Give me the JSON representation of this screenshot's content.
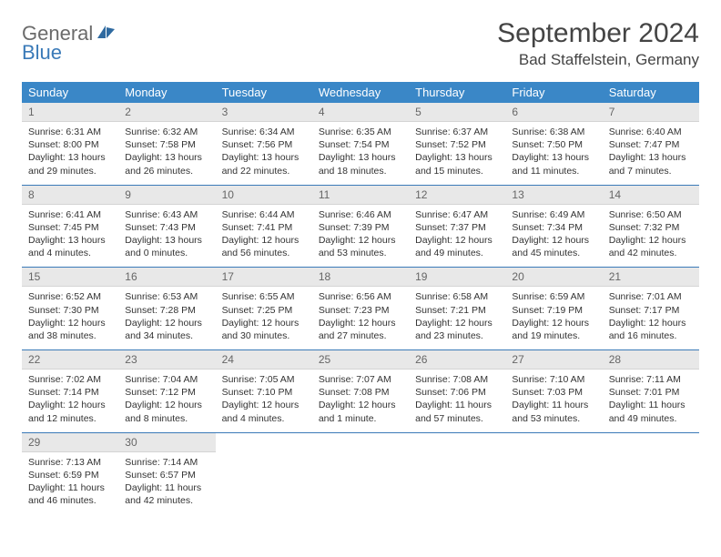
{
  "brand": {
    "part1": "General",
    "part2": "Blue"
  },
  "title": "September 2024",
  "location": "Bad Staffelstein, Germany",
  "colors": {
    "header_bg": "#3a87c7",
    "header_text": "#ffffff",
    "daynum_bg": "#e8e8e8",
    "row_divider": "#3a7ab8",
    "brand_gray": "#6b6b6b",
    "brand_blue": "#3a7ab8"
  },
  "weekdays": [
    "Sunday",
    "Monday",
    "Tuesday",
    "Wednesday",
    "Thursday",
    "Friday",
    "Saturday"
  ],
  "weeks": [
    [
      {
        "n": "1",
        "sr": "Sunrise: 6:31 AM",
        "ss": "Sunset: 8:00 PM",
        "dl": "Daylight: 13 hours and 29 minutes."
      },
      {
        "n": "2",
        "sr": "Sunrise: 6:32 AM",
        "ss": "Sunset: 7:58 PM",
        "dl": "Daylight: 13 hours and 26 minutes."
      },
      {
        "n": "3",
        "sr": "Sunrise: 6:34 AM",
        "ss": "Sunset: 7:56 PM",
        "dl": "Daylight: 13 hours and 22 minutes."
      },
      {
        "n": "4",
        "sr": "Sunrise: 6:35 AM",
        "ss": "Sunset: 7:54 PM",
        "dl": "Daylight: 13 hours and 18 minutes."
      },
      {
        "n": "5",
        "sr": "Sunrise: 6:37 AM",
        "ss": "Sunset: 7:52 PM",
        "dl": "Daylight: 13 hours and 15 minutes."
      },
      {
        "n": "6",
        "sr": "Sunrise: 6:38 AM",
        "ss": "Sunset: 7:50 PM",
        "dl": "Daylight: 13 hours and 11 minutes."
      },
      {
        "n": "7",
        "sr": "Sunrise: 6:40 AM",
        "ss": "Sunset: 7:47 PM",
        "dl": "Daylight: 13 hours and 7 minutes."
      }
    ],
    [
      {
        "n": "8",
        "sr": "Sunrise: 6:41 AM",
        "ss": "Sunset: 7:45 PM",
        "dl": "Daylight: 13 hours and 4 minutes."
      },
      {
        "n": "9",
        "sr": "Sunrise: 6:43 AM",
        "ss": "Sunset: 7:43 PM",
        "dl": "Daylight: 13 hours and 0 minutes."
      },
      {
        "n": "10",
        "sr": "Sunrise: 6:44 AM",
        "ss": "Sunset: 7:41 PM",
        "dl": "Daylight: 12 hours and 56 minutes."
      },
      {
        "n": "11",
        "sr": "Sunrise: 6:46 AM",
        "ss": "Sunset: 7:39 PM",
        "dl": "Daylight: 12 hours and 53 minutes."
      },
      {
        "n": "12",
        "sr": "Sunrise: 6:47 AM",
        "ss": "Sunset: 7:37 PM",
        "dl": "Daylight: 12 hours and 49 minutes."
      },
      {
        "n": "13",
        "sr": "Sunrise: 6:49 AM",
        "ss": "Sunset: 7:34 PM",
        "dl": "Daylight: 12 hours and 45 minutes."
      },
      {
        "n": "14",
        "sr": "Sunrise: 6:50 AM",
        "ss": "Sunset: 7:32 PM",
        "dl": "Daylight: 12 hours and 42 minutes."
      }
    ],
    [
      {
        "n": "15",
        "sr": "Sunrise: 6:52 AM",
        "ss": "Sunset: 7:30 PM",
        "dl": "Daylight: 12 hours and 38 minutes."
      },
      {
        "n": "16",
        "sr": "Sunrise: 6:53 AM",
        "ss": "Sunset: 7:28 PM",
        "dl": "Daylight: 12 hours and 34 minutes."
      },
      {
        "n": "17",
        "sr": "Sunrise: 6:55 AM",
        "ss": "Sunset: 7:25 PM",
        "dl": "Daylight: 12 hours and 30 minutes."
      },
      {
        "n": "18",
        "sr": "Sunrise: 6:56 AM",
        "ss": "Sunset: 7:23 PM",
        "dl": "Daylight: 12 hours and 27 minutes."
      },
      {
        "n": "19",
        "sr": "Sunrise: 6:58 AM",
        "ss": "Sunset: 7:21 PM",
        "dl": "Daylight: 12 hours and 23 minutes."
      },
      {
        "n": "20",
        "sr": "Sunrise: 6:59 AM",
        "ss": "Sunset: 7:19 PM",
        "dl": "Daylight: 12 hours and 19 minutes."
      },
      {
        "n": "21",
        "sr": "Sunrise: 7:01 AM",
        "ss": "Sunset: 7:17 PM",
        "dl": "Daylight: 12 hours and 16 minutes."
      }
    ],
    [
      {
        "n": "22",
        "sr": "Sunrise: 7:02 AM",
        "ss": "Sunset: 7:14 PM",
        "dl": "Daylight: 12 hours and 12 minutes."
      },
      {
        "n": "23",
        "sr": "Sunrise: 7:04 AM",
        "ss": "Sunset: 7:12 PM",
        "dl": "Daylight: 12 hours and 8 minutes."
      },
      {
        "n": "24",
        "sr": "Sunrise: 7:05 AM",
        "ss": "Sunset: 7:10 PM",
        "dl": "Daylight: 12 hours and 4 minutes."
      },
      {
        "n": "25",
        "sr": "Sunrise: 7:07 AM",
        "ss": "Sunset: 7:08 PM",
        "dl": "Daylight: 12 hours and 1 minute."
      },
      {
        "n": "26",
        "sr": "Sunrise: 7:08 AM",
        "ss": "Sunset: 7:06 PM",
        "dl": "Daylight: 11 hours and 57 minutes."
      },
      {
        "n": "27",
        "sr": "Sunrise: 7:10 AM",
        "ss": "Sunset: 7:03 PM",
        "dl": "Daylight: 11 hours and 53 minutes."
      },
      {
        "n": "28",
        "sr": "Sunrise: 7:11 AM",
        "ss": "Sunset: 7:01 PM",
        "dl": "Daylight: 11 hours and 49 minutes."
      }
    ],
    [
      {
        "n": "29",
        "sr": "Sunrise: 7:13 AM",
        "ss": "Sunset: 6:59 PM",
        "dl": "Daylight: 11 hours and 46 minutes."
      },
      {
        "n": "30",
        "sr": "Sunrise: 7:14 AM",
        "ss": "Sunset: 6:57 PM",
        "dl": "Daylight: 11 hours and 42 minutes."
      },
      null,
      null,
      null,
      null,
      null
    ]
  ]
}
